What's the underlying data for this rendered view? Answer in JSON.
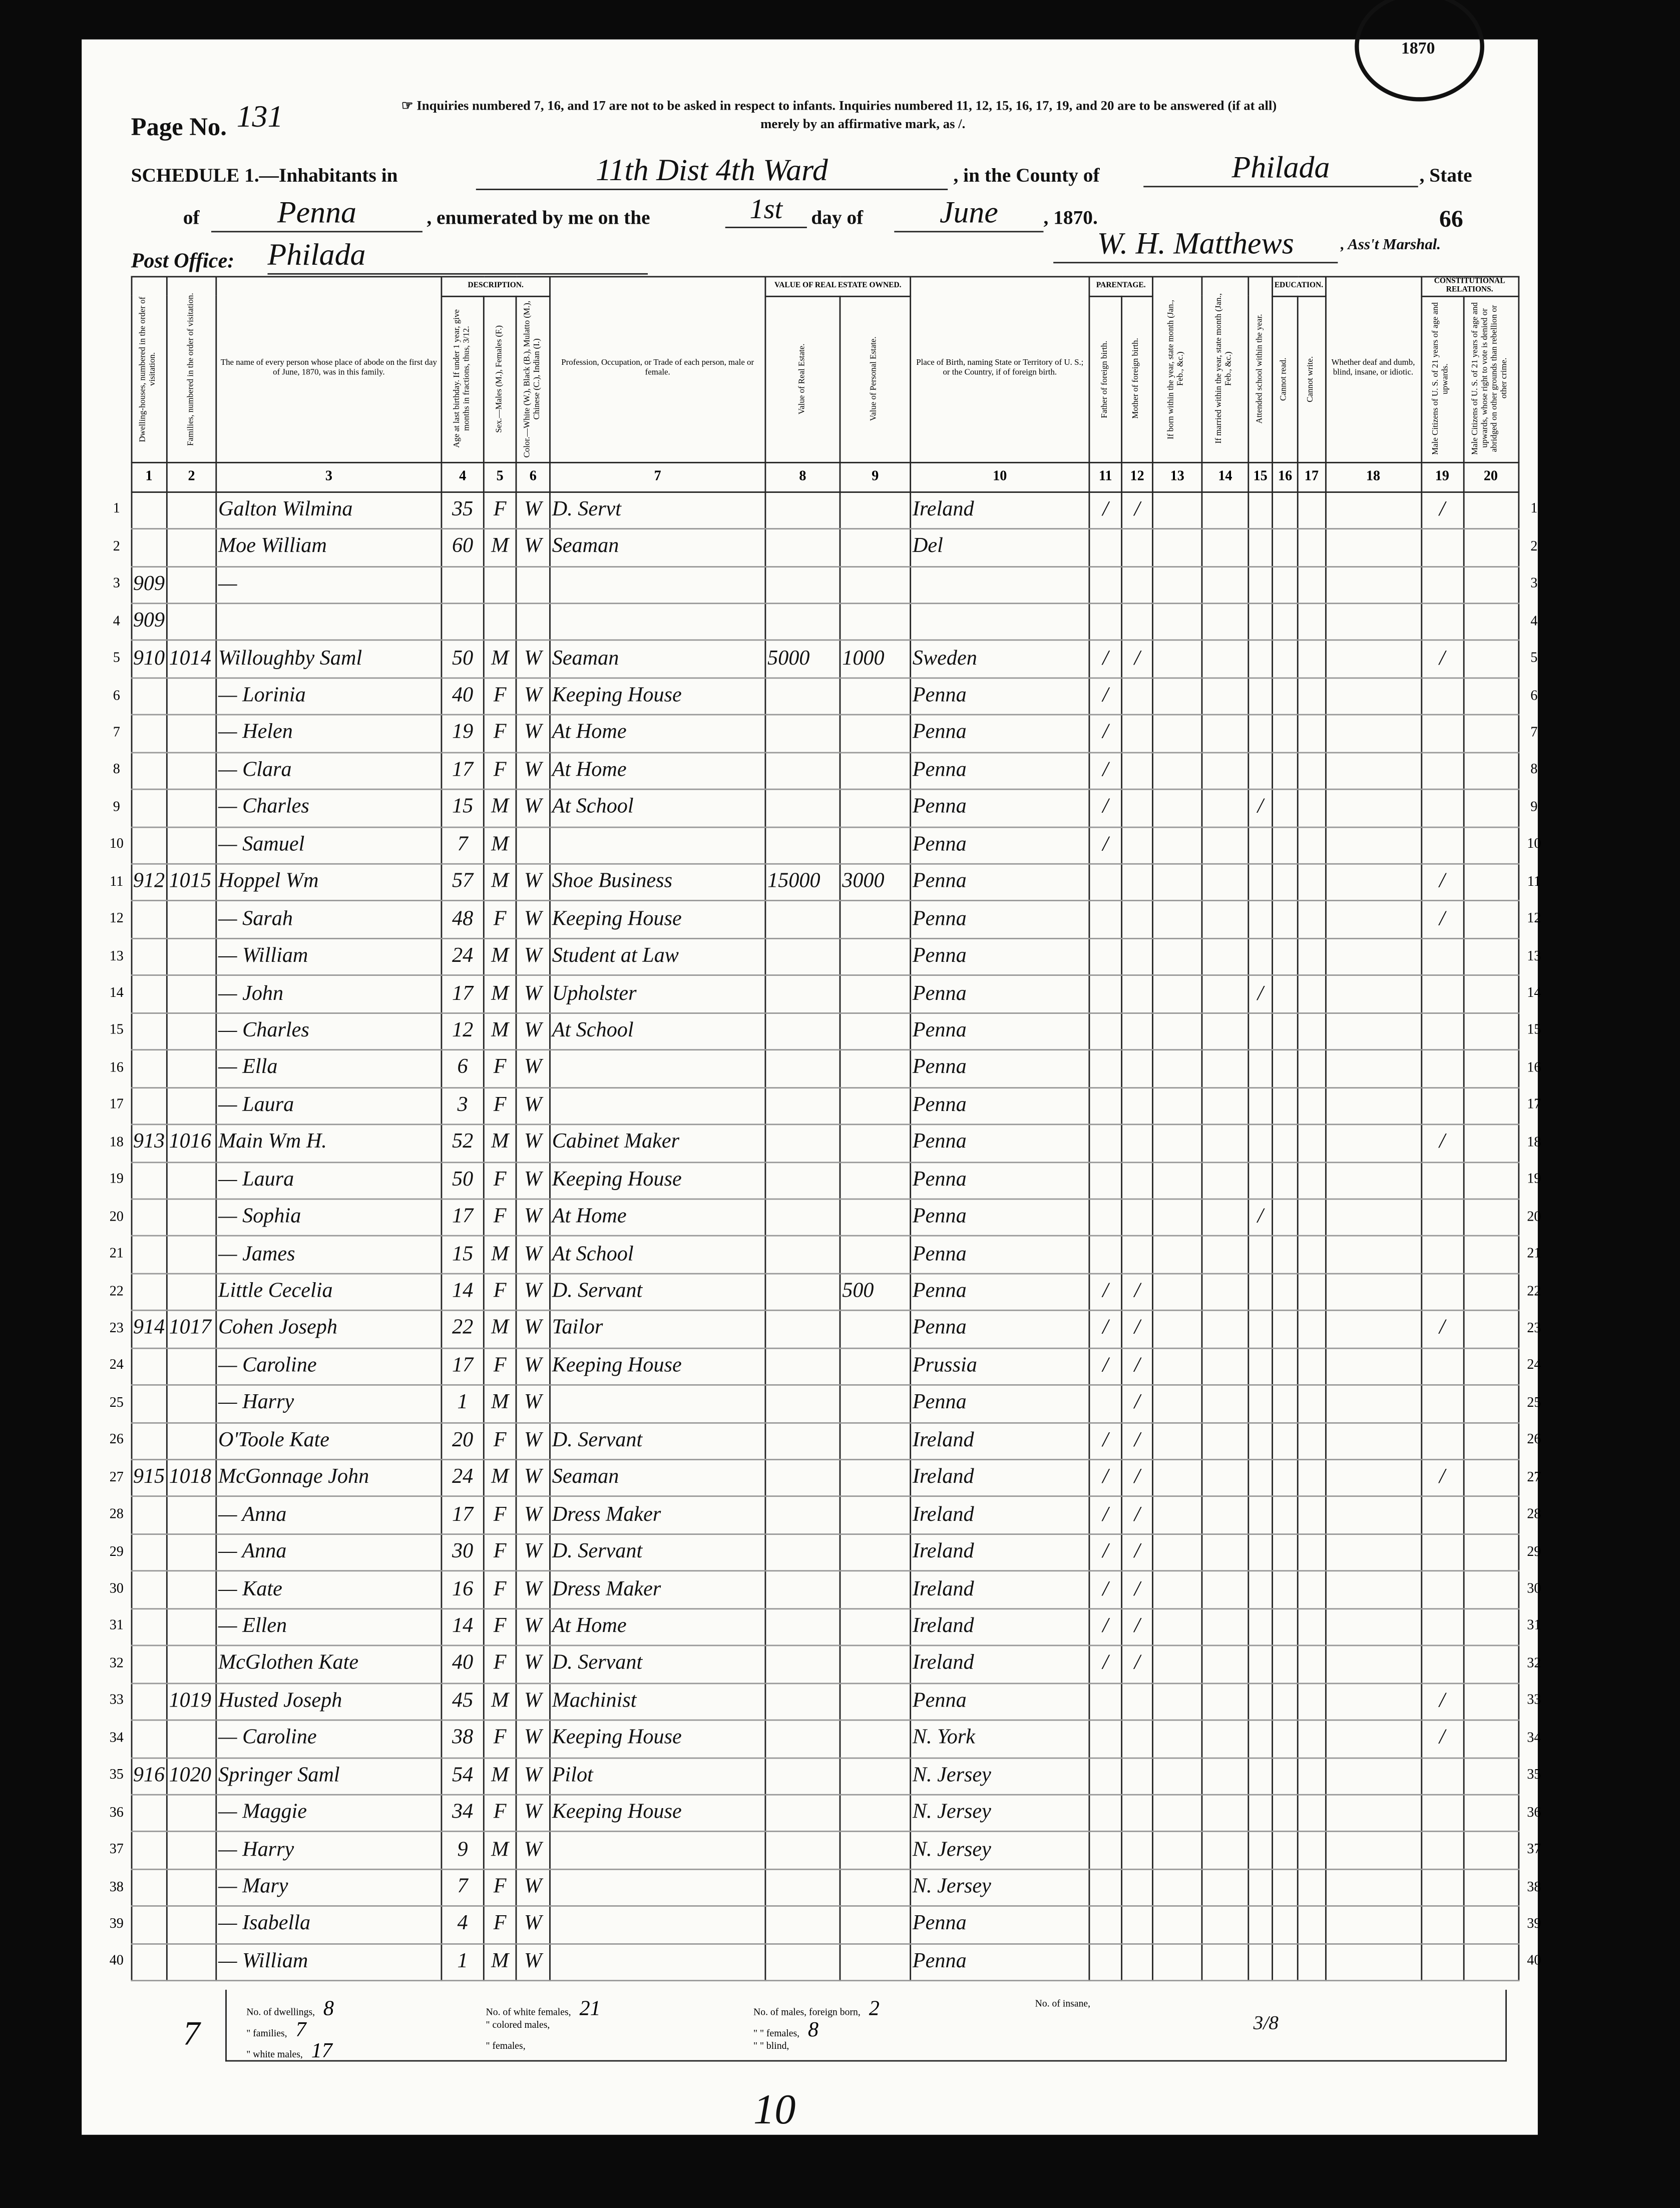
{
  "header": {
    "page_no_label": "Page No.",
    "page_no": "131",
    "stamp": "1870",
    "note_1": "☞ Inquiries numbered 7, 16, and 17 are not to be asked in respect to infants.  Inquiries numbered 11, 12, 15, 16, 17, 19, and 20 are to be answered (if at all)",
    "note_2": "merely by an affirmative mark, as /.",
    "schedule": "SCHEDULE 1.—Inhabitants in",
    "place": "11th Dist 4th Ward",
    "county_label": ", in the County of",
    "county": "Philada",
    "state_label": ", State",
    "of_label": "of",
    "state": "Penna",
    "enumerated_label": ", enumerated by me on the",
    "day": "1st",
    "day_of_label": "day of",
    "month": "June",
    "year_label": ", 1870.",
    "sheet": "66",
    "post_office_label": "Post Office:",
    "post_office": "Philada",
    "marshal": "W. H. Matthews",
    "marshal_label": ", Ass't Marshal."
  },
  "headings": [
    {
      "num": 1,
      "text": "Dwelling-houses, numbered in the order of visitation."
    },
    {
      "num": 2,
      "text": "Families, numbered in the order of visitation."
    },
    {
      "num": 3,
      "text": "The name of every person whose place of abode on the first day of June, 1870, was in this family."
    },
    {
      "group": "DESCRIPTION.",
      "columns": [
        {
          "num": 4,
          "text": "Age at last birthday. If under 1 year, give months in fractions, thus, 3/12."
        },
        {
          "num": 5,
          "text": "Sex.—Males (M.), Females (F.)"
        },
        {
          "num": 6,
          "text": "Color.—White (W.), Black (B.), Mulatto (M.), Chinese (C.), Indian (I.)"
        }
      ]
    },
    {
      "num": 7,
      "text": "Profession, Occupation, or Trade of each person, male or female."
    },
    {
      "group": "VALUE OF REAL ESTATE OWNED.",
      "columns": [
        {
          "num": 8,
          "text": "Value of Real Estate."
        },
        {
          "num": 9,
          "text": "Value of Personal Estate."
        }
      ]
    },
    {
      "num": 10,
      "text": "Place of Birth, naming State or Territory of U. S.; or the Country, if of foreign birth."
    },
    {
      "group": "PARENTAGE.",
      "columns": [
        {
          "num": 11,
          "text": "Father of foreign birth."
        },
        {
          "num": 12,
          "text": "Mother of foreign birth."
        }
      ]
    },
    {
      "num": 13,
      "text": "If born within the year, state month (Jan., Feb., &c.)"
    },
    {
      "num": 14,
      "text": "If married within the year, state month (Jan., Feb., &c.)"
    },
    {
      "num": 15,
      "text": "Attended school within the year."
    },
    {
      "group": "EDUCATION.",
      "columns": [
        {
          "num": 16,
          "text": "Cannot read."
        },
        {
          "num": 17,
          "text": "Cannot write."
        }
      ]
    },
    {
      "num": 18,
      "text": "Whether deaf and dumb, blind, insane, or idiotic."
    },
    {
      "group": "CONSTITUTIONAL RELATIONS.",
      "columns": [
        {
          "num": 19,
          "text": "Male Citizens of U. S. of 21 years of age and upwards."
        },
        {
          "num": 20,
          "text": "Male Citizens of U. S. of 21 years of age and upwards, whose right to vote is denied or abridged on other grounds than rebellion or other crime."
        }
      ]
    }
  ],
  "rows": [
    {
      "line": 1,
      "cells": [
        null,
        null,
        "Galton Wilmina",
        35,
        "F",
        "W",
        "D. Servt",
        null,
        null,
        "Ireland",
        "/",
        "/",
        null,
        null,
        null,
        null,
        null,
        null,
        "/",
        null
      ]
    },
    {
      "line": 2,
      "cells": [
        null,
        null,
        "Moe William",
        60,
        "M",
        "W",
        "Seaman",
        null,
        null,
        "Del",
        null,
        null,
        null,
        null,
        null,
        null,
        null,
        null,
        null,
        null
      ]
    },
    {
      "line": 3,
      "cells": [
        "909",
        null,
        "—",
        null,
        null,
        null,
        null,
        null,
        null,
        null,
        null,
        null,
        null,
        null,
        null,
        null,
        null,
        null,
        null,
        null
      ]
    },
    {
      "line": 4,
      "cells": [
        "909",
        null,
        null,
        null,
        null,
        null,
        null,
        null,
        null,
        null,
        null,
        null,
        null,
        null,
        null,
        null,
        null,
        null,
        null,
        null
      ]
    },
    {
      "line": 5,
      "cells": [
        "910",
        "1014",
        "Willoughby Saml",
        50,
        "M",
        "W",
        "Seaman",
        5000,
        1000,
        "Sweden",
        "/",
        "/",
        null,
        null,
        null,
        null,
        null,
        null,
        "/",
        null
      ]
    },
    {
      "line": 6,
      "cells": [
        null,
        null,
        "— Lorinia",
        40,
        "F",
        "W",
        "Keeping House",
        null,
        null,
        "Penna",
        "/",
        null,
        null,
        null,
        null,
        null,
        null,
        null,
        null,
        null
      ]
    },
    {
      "line": 7,
      "cells": [
        null,
        null,
        "— Helen",
        19,
        "F",
        "W",
        "At Home",
        null,
        null,
        "Penna",
        "/",
        null,
        null,
        null,
        null,
        null,
        null,
        null,
        null,
        null
      ]
    },
    {
      "line": 8,
      "cells": [
        null,
        null,
        "— Clara",
        17,
        "F",
        "W",
        "At Home",
        null,
        null,
        "Penna",
        "/",
        null,
        null,
        null,
        null,
        null,
        null,
        null,
        null,
        null
      ]
    },
    {
      "line": 9,
      "cells": [
        null,
        null,
        "— Charles",
        15,
        "M",
        "W",
        "At School",
        null,
        null,
        "Penna",
        "/",
        null,
        null,
        null,
        "/",
        null,
        null,
        null,
        null,
        null
      ]
    },
    {
      "line": 10,
      "cells": [
        null,
        null,
        "— Samuel",
        7,
        "M",
        null,
        null,
        null,
        null,
        "Penna",
        "/",
        null,
        null,
        null,
        null,
        null,
        null,
        null,
        null,
        null
      ]
    },
    {
      "line": 11,
      "cells": [
        "912",
        "1015",
        "Hoppel Wm",
        57,
        "M",
        "W",
        "Shoe Business",
        15000,
        3000,
        "Penna",
        null,
        null,
        null,
        null,
        null,
        null,
        null,
        null,
        "/",
        null
      ]
    },
    {
      "line": 12,
      "cells": [
        null,
        null,
        "— Sarah",
        48,
        "F",
        "W",
        "Keeping House",
        null,
        null,
        "Penna",
        null,
        null,
        null,
        null,
        null,
        null,
        null,
        null,
        "/",
        null
      ]
    },
    {
      "line": 13,
      "cells": [
        null,
        null,
        "— William",
        24,
        "M",
        "W",
        "Student at Law",
        null,
        null,
        "Penna",
        null,
        null,
        null,
        null,
        null,
        null,
        null,
        null,
        null,
        null
      ]
    },
    {
      "line": 14,
      "cells": [
        null,
        null,
        "— John",
        17,
        "M",
        "W",
        "Upholster",
        null,
        null,
        "Penna",
        null,
        null,
        null,
        null,
        "/",
        null,
        null,
        null,
        null,
        null
      ]
    },
    {
      "line": 15,
      "cells": [
        null,
        null,
        "— Charles",
        12,
        "M",
        "W",
        "At School",
        null,
        null,
        "Penna",
        null,
        null,
        null,
        null,
        null,
        null,
        null,
        null,
        null,
        null
      ]
    },
    {
      "line": 16,
      "cells": [
        null,
        null,
        "— Ella",
        6,
        "F",
        "W",
        null,
        null,
        null,
        "Penna",
        null,
        null,
        null,
        null,
        null,
        null,
        null,
        null,
        null,
        null
      ]
    },
    {
      "line": 17,
      "cells": [
        null,
        null,
        "— Laura",
        3,
        "F",
        "W",
        null,
        null,
        null,
        "Penna",
        null,
        null,
        null,
        null,
        null,
        null,
        null,
        null,
        null,
        null
      ]
    },
    {
      "line": 18,
      "cells": [
        "913",
        "1016",
        "Main Wm H.",
        52,
        "M",
        "W",
        "Cabinet Maker",
        null,
        null,
        "Penna",
        null,
        null,
        null,
        null,
        null,
        null,
        null,
        null,
        "/",
        null
      ]
    },
    {
      "line": 19,
      "cells": [
        null,
        null,
        "— Laura",
        50,
        "F",
        "W",
        "Keeping House",
        null,
        null,
        "Penna",
        null,
        null,
        null,
        null,
        null,
        null,
        null,
        null,
        null,
        null
      ]
    },
    {
      "line": 20,
      "cells": [
        null,
        null,
        "— Sophia",
        17,
        "F",
        "W",
        "At Home",
        null,
        null,
        "Penna",
        null,
        null,
        null,
        null,
        "/",
        null,
        null,
        null,
        null,
        null
      ]
    },
    {
      "line": 21,
      "cells": [
        null,
        null,
        "— James",
        15,
        "M",
        "W",
        "At School",
        null,
        null,
        "Penna",
        null,
        null,
        null,
        null,
        null,
        null,
        null,
        null,
        null,
        null
      ]
    },
    {
      "line": 22,
      "cells": [
        null,
        null,
        "Little Cecelia",
        14,
        "F",
        "W",
        "D. Servant",
        null,
        500,
        "Penna",
        "/",
        "/",
        null,
        null,
        null,
        null,
        null,
        null,
        null,
        null
      ]
    },
    {
      "line": 23,
      "cells": [
        "914",
        "1017",
        "Cohen Joseph",
        22,
        "M",
        "W",
        "Tailor",
        null,
        null,
        "Penna",
        "/",
        "/",
        null,
        null,
        null,
        null,
        null,
        null,
        "/",
        null
      ]
    },
    {
      "line": 24,
      "cells": [
        null,
        null,
        "— Caroline",
        17,
        "F",
        "W",
        "Keeping House",
        null,
        null,
        "Prussia",
        "/",
        "/",
        null,
        null,
        null,
        null,
        null,
        null,
        null,
        null
      ]
    },
    {
      "line": 25,
      "cells": [
        null,
        null,
        "— Harry",
        1,
        "M",
        "W",
        null,
        null,
        null,
        "Penna",
        null,
        "/",
        null,
        null,
        null,
        null,
        null,
        null,
        null,
        null
      ]
    },
    {
      "line": 26,
      "cells": [
        null,
        null,
        "O'Toole Kate",
        20,
        "F",
        "W",
        "D. Servant",
        null,
        null,
        "Ireland",
        "/",
        "/",
        null,
        null,
        null,
        null,
        null,
        null,
        null,
        null
      ]
    },
    {
      "line": 27,
      "cells": [
        "915",
        "1018",
        "McGonnage John",
        24,
        "M",
        "W",
        "Seaman",
        null,
        null,
        "Ireland",
        "/",
        "/",
        null,
        null,
        null,
        null,
        null,
        null,
        "/",
        null
      ]
    },
    {
      "line": 28,
      "cells": [
        null,
        null,
        "— Anna",
        17,
        "F",
        "W",
        "Dress Maker",
        null,
        null,
        "Ireland",
        "/",
        "/",
        null,
        null,
        null,
        null,
        null,
        null,
        null,
        null
      ]
    },
    {
      "line": 29,
      "cells": [
        null,
        null,
        "— Anna",
        30,
        "F",
        "W",
        "D. Servant",
        null,
        null,
        "Ireland",
        "/",
        "/",
        null,
        null,
        null,
        null,
        null,
        null,
        null,
        null
      ]
    },
    {
      "line": 30,
      "cells": [
        null,
        null,
        "— Kate",
        16,
        "F",
        "W",
        "Dress Maker",
        null,
        null,
        "Ireland",
        "/",
        "/",
        null,
        null,
        null,
        null,
        null,
        null,
        null,
        null
      ]
    },
    {
      "line": 31,
      "cells": [
        null,
        null,
        "— Ellen",
        14,
        "F",
        "W",
        "At Home",
        null,
        null,
        "Ireland",
        "/",
        "/",
        null,
        null,
        null,
        null,
        null,
        null,
        null,
        null
      ]
    },
    {
      "line": 32,
      "cells": [
        null,
        null,
        "McGlothen Kate",
        40,
        "F",
        "W",
        "D. Servant",
        null,
        null,
        "Ireland",
        "/",
        "/",
        null,
        null,
        null,
        null,
        null,
        null,
        null,
        null
      ]
    },
    {
      "line": 33,
      "cells": [
        null,
        "1019",
        "Husted Joseph",
        45,
        "M",
        "W",
        "Machinist",
        null,
        null,
        "Penna",
        null,
        null,
        null,
        null,
        null,
        null,
        null,
        null,
        "/",
        null
      ]
    },
    {
      "line": 34,
      "cells": [
        null,
        null,
        "— Caroline",
        38,
        "F",
        "W",
        "Keeping House",
        null,
        null,
        "N. York",
        null,
        null,
        null,
        null,
        null,
        null,
        null,
        null,
        "/",
        null
      ]
    },
    {
      "line": 35,
      "cells": [
        "916",
        "1020",
        "Springer Saml",
        54,
        "M",
        "W",
        "Pilot",
        null,
        null,
        "N. Jersey",
        null,
        null,
        null,
        null,
        null,
        null,
        null,
        null,
        null,
        null
      ]
    },
    {
      "line": 36,
      "cells": [
        null,
        null,
        "— Maggie",
        34,
        "F",
        "W",
        "Keeping House",
        null,
        null,
        "N. Jersey",
        null,
        null,
        null,
        null,
        null,
        null,
        null,
        null,
        null,
        null
      ]
    },
    {
      "line": 37,
      "cells": [
        null,
        null,
        "— Harry",
        9,
        "M",
        "W",
        null,
        null,
        null,
        "N. Jersey",
        null,
        null,
        null,
        null,
        null,
        null,
        null,
        null,
        null,
        null
      ]
    },
    {
      "line": 38,
      "cells": [
        null,
        null,
        "— Mary",
        7,
        "F",
        "W",
        null,
        null,
        null,
        "N. Jersey",
        null,
        null,
        null,
        null,
        null,
        null,
        null,
        null,
        null,
        null
      ]
    },
    {
      "line": 39,
      "cells": [
        null,
        null,
        "— Isabella",
        4,
        "F",
        "W",
        null,
        null,
        null,
        "Penna",
        null,
        null,
        null,
        null,
        null,
        null,
        null,
        null,
        null,
        null
      ]
    },
    {
      "line": 40,
      "cells": [
        null,
        null,
        "— William",
        1,
        "M",
        "W",
        null,
        null,
        null,
        "Penna",
        null,
        null,
        null,
        null,
        null,
        null,
        null,
        null,
        null,
        null
      ]
    }
  ],
  "summary": [
    [
      {
        "label": "No. of dwellings,",
        "value": "8"
      },
      {
        "label": "No. of white females,",
        "value": "21"
      },
      {
        "label": "No. of males, foreign born,",
        "value": "2"
      },
      {
        "label": "No. of insane,",
        "value": null
      }
    ],
    [
      {
        "label": "\" families,",
        "value": "7"
      },
      {
        "label": "\" colored males,",
        "value": null
      },
      {
        "label": "\" \" females,",
        "value": "8"
      }
    ],
    [
      {
        "label": "\" white males,",
        "value": "17"
      },
      {
        "label": "\" females,",
        "value": null
      },
      {
        "label": "\" \" blind,",
        "value": null
      }
    ]
  ],
  "marginalia": {
    "left": "7",
    "tally": "3/8",
    "bottom": "10"
  }
}
